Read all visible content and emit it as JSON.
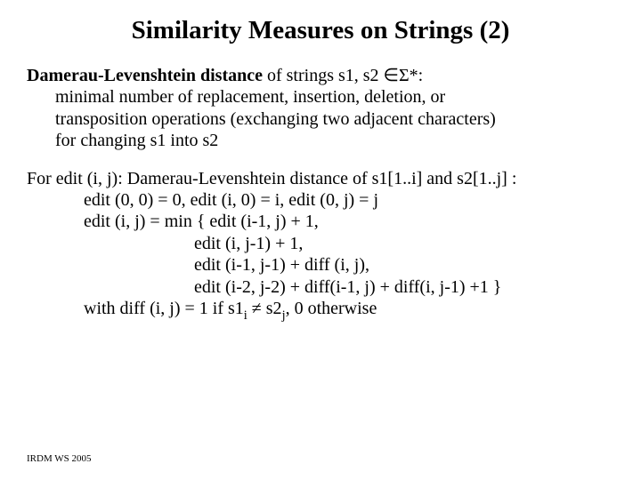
{
  "title": "Similarity Measures on Strings (2)",
  "p1": {
    "l1a": "Damerau-Levenshtein distance",
    "l1b": " of strings s1, s2 ∈Σ*:",
    "l2": "minimal number of replacement, insertion, deletion, or",
    "l3": "transposition operations (exchanging two adjacent characters)",
    "l4": "for changing s1 into s2"
  },
  "p2": {
    "l1": "For edit (i, j): Damerau-Levenshtein distance of s1[1..i] and s2[1..j] :",
    "l2": "edit (0, 0) = 0, edit (i, 0) = i, edit (0, j) = j",
    "l3": "edit (i, j) = min { edit (i-1, j) + 1,",
    "l4": "edit (i, j-1) + 1,",
    "l5": "edit (i-1, j-1) + diff (i, j),",
    "l6": "edit (i-2, j-2) + diff(i-1, j) + diff(i, j-1) +1 }",
    "l7a": "with diff (i, j) = 1 if s1",
    "l7b": "i",
    "l7c": " ≠ s2",
    "l7d": "j",
    "l7e": ", 0 otherwise"
  },
  "footer": "IRDM  WS 2005",
  "colors": {
    "text": "#000000",
    "background": "#ffffff"
  },
  "typography": {
    "title_fontsize": 29,
    "body_fontsize": 20,
    "footer_fontsize": 11,
    "font_family": "Times New Roman"
  }
}
